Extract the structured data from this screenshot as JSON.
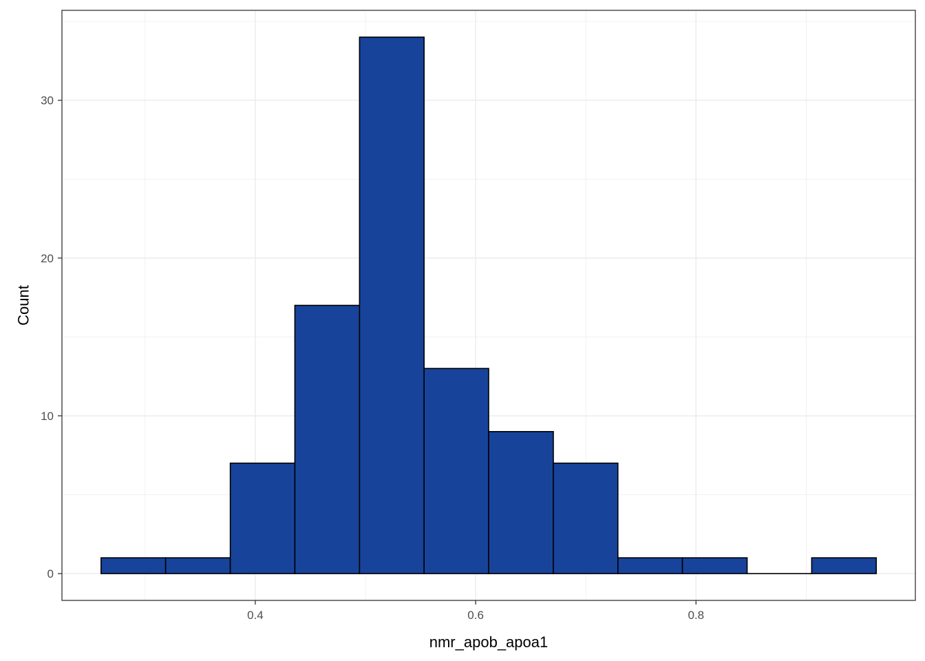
{
  "chart_data": {
    "type": "bar",
    "title": "",
    "xlabel": "nmr_apob_apoa1",
    "ylabel": "Count",
    "bin_edges": [
      0.26,
      0.3186,
      0.3773,
      0.4359,
      0.4946,
      0.5532,
      0.6118,
      0.6705,
      0.7291,
      0.7877,
      0.8464,
      0.905,
      0.9636
    ],
    "counts": [
      1,
      1,
      7,
      17,
      34,
      13,
      9,
      7,
      1,
      1,
      0,
      1
    ],
    "xlim": [
      0.2245,
      0.9991
    ],
    "ylim": [
      -1.7,
      35.7
    ],
    "x_ticks": [
      0.4,
      0.6,
      0.8
    ],
    "x_tick_labels": [
      "0.4",
      "0.6",
      "0.8"
    ],
    "y_ticks": [
      0,
      10,
      20,
      30
    ],
    "y_tick_labels": [
      "0",
      "10",
      "20",
      "30"
    ],
    "grid": true,
    "legend": "none",
    "colors": {
      "fill": "#17439B",
      "outline": "#000000",
      "grid": "#EBEBEB",
      "panel_border": "#333333",
      "tick_label": "#4D4D4D"
    }
  }
}
